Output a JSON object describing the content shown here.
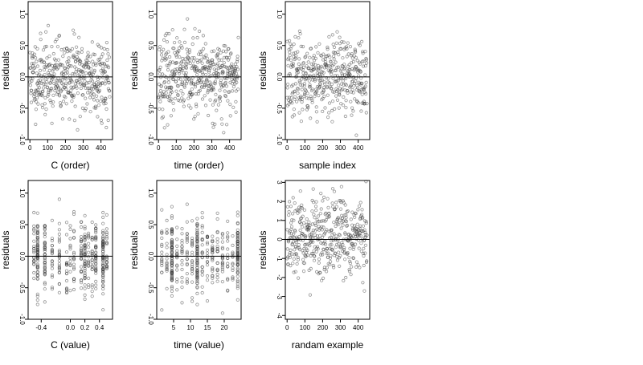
{
  "chart_data": [
    {
      "type": "scatter",
      "xlabel": "C (order)",
      "ylabel": "residuals",
      "xlim": [
        -10,
        465
      ],
      "ylim": [
        -1.0,
        1.2
      ],
      "xticks": [
        0,
        100,
        200,
        300,
        400
      ],
      "yticks": [
        -1.0,
        -0.5,
        0.0,
        0.5,
        1.0
      ],
      "ytick_labels": [
        "-1.0",
        "-0.5",
        "0.0",
        "0.5",
        "1.0"
      ],
      "hline": 0,
      "x_mode": "index",
      "n_points": 450,
      "spread": 0.3,
      "seed": 11
    },
    {
      "type": "scatter",
      "xlabel": "time (order)",
      "ylabel": "residuals",
      "xlim": [
        -10,
        465
      ],
      "ylim": [
        -1.0,
        1.2
      ],
      "xticks": [
        0,
        100,
        200,
        300,
        400
      ],
      "yticks": [
        -1.0,
        -0.5,
        0.0,
        0.5,
        1.0
      ],
      "ytick_labels": [
        "-1.0",
        "-0.5",
        "0.0",
        "0.5",
        "1.0"
      ],
      "hline": 0,
      "x_mode": "index",
      "n_points": 450,
      "spread": 0.3,
      "seed": 23
    },
    {
      "type": "scatter",
      "xlabel": "sample index",
      "ylabel": "residuals",
      "xlim": [
        -10,
        465
      ],
      "ylim": [
        -1.0,
        1.2
      ],
      "xticks": [
        0,
        100,
        200,
        300,
        400
      ],
      "yticks": [
        -1.0,
        -0.5,
        0.0,
        0.5,
        1.0
      ],
      "ytick_labels": [
        "-1.0",
        "-0.5",
        "0.0",
        "0.5",
        "1.0"
      ],
      "hline": 0,
      "x_mode": "index",
      "n_points": 450,
      "spread": 0.3,
      "seed": 37
    },
    {
      "type": "scatter",
      "xlabel": "C (value)",
      "ylabel": "residuals",
      "xlim": [
        -0.58,
        0.58
      ],
      "ylim": [
        -1.0,
        1.2
      ],
      "xticks": [
        -0.4,
        0.0,
        0.2,
        0.4
      ],
      "xtick_labels": [
        "-0.4",
        "0.0",
        "0.2",
        "0.4"
      ],
      "yticks": [
        -1.0,
        -0.5,
        0.0,
        0.5,
        1.0
      ],
      "ytick_labels": [
        "-1.0",
        "-0.5",
        "0.0",
        "0.5",
        "1.0"
      ],
      "hline": 0,
      "x_mode": "discrete",
      "x_levels": [
        -0.5,
        -0.45,
        -0.35,
        -0.25,
        -0.15,
        -0.05,
        0.0,
        0.05,
        0.15,
        0.2,
        0.25,
        0.3,
        0.35,
        0.45,
        0.5
      ],
      "heavy_levels": [
        -0.45,
        -0.35,
        0.2,
        0.35,
        0.45
      ],
      "n_points": 450,
      "spread": 0.3,
      "seed": 41
    },
    {
      "type": "scatter",
      "xlabel": "time (value)",
      "ylabel": "residuals",
      "xlim": [
        0,
        25
      ],
      "ylim": [
        -1.0,
        1.2
      ],
      "xticks": [
        5,
        10,
        15,
        20
      ],
      "yticks": [
        -1.0,
        -0.5,
        0.0,
        0.5,
        1.0
      ],
      "ytick_labels": [
        "-1.0",
        "-0.5",
        "0.0",
        "0.5",
        "1.0"
      ],
      "hline": 0,
      "x_mode": "discrete",
      "x_levels": [
        1.5,
        3,
        4.5,
        6,
        7.5,
        9,
        10.5,
        12,
        13.5,
        15,
        16.5,
        18,
        19.5,
        21,
        22.5,
        24
      ],
      "heavy_levels": [
        4.5,
        12,
        24
      ],
      "n_points": 450,
      "spread": 0.3,
      "seed": 53
    },
    {
      "type": "scatter",
      "xlabel": "randam example",
      "ylabel": "residuals",
      "xlim": [
        -10,
        465
      ],
      "ylim": [
        -4.2,
        3.1
      ],
      "xticks": [
        0,
        100,
        200,
        300,
        400
      ],
      "yticks": [
        -4,
        -3,
        -2,
        -1,
        0,
        1,
        2,
        3
      ],
      "ytick_labels": [
        "-4",
        "-3",
        "-2",
        "-1",
        "0",
        "1",
        "2",
        "3"
      ],
      "hline": 0,
      "x_mode": "index",
      "n_points": 450,
      "spread": 1.0,
      "seed": 67
    }
  ]
}
